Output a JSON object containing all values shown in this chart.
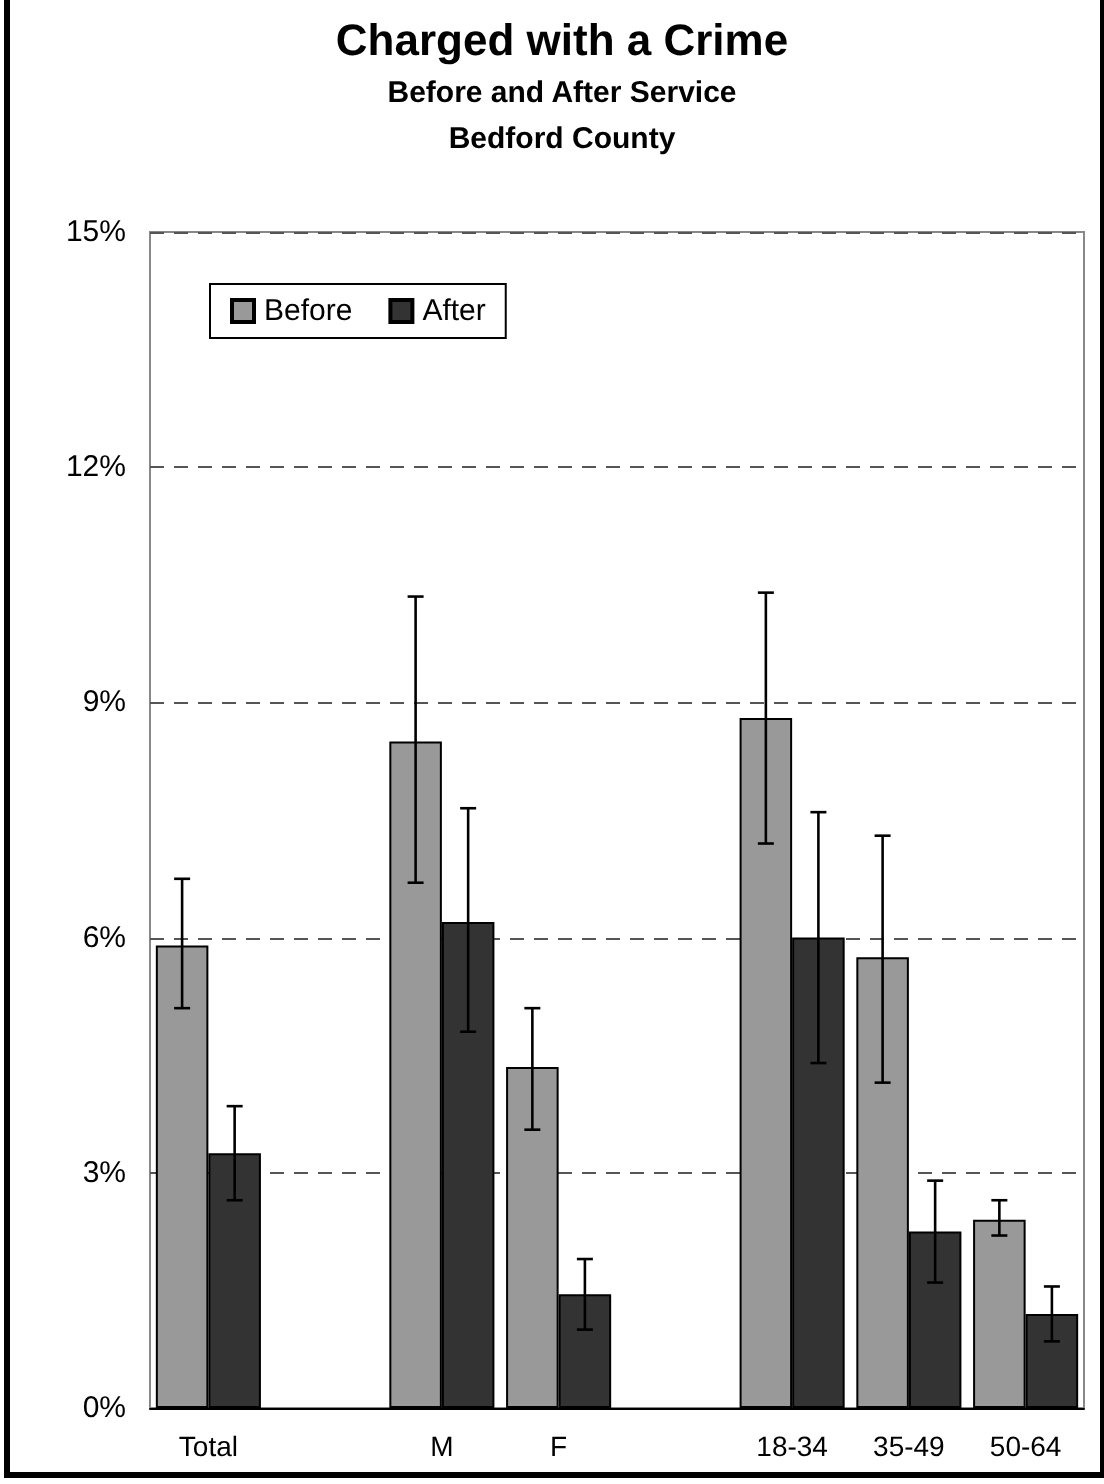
{
  "chart_data": {
    "type": "bar",
    "title": "Charged with a Crime",
    "subtitle": "Before and After Service\nBedford County",
    "categories": [
      "Total",
      null,
      "M",
      "F",
      null,
      "18-34",
      "35-49",
      "50-64"
    ],
    "series": [
      {
        "name": "Before",
        "color": "#999999",
        "values": [
          5.9,
          null,
          8.5,
          4.35,
          null,
          8.8,
          5.75,
          2.4
        ],
        "errors": [
          [
            5.1,
            6.75
          ],
          null,
          [
            6.7,
            10.35
          ],
          [
            3.55,
            5.1
          ],
          null,
          [
            7.2,
            10.4
          ],
          [
            4.15,
            7.3
          ],
          [
            2.2,
            2.65
          ]
        ]
      },
      {
        "name": "After",
        "color": "#333333",
        "values": [
          3.25,
          null,
          6.2,
          1.45,
          null,
          6.0,
          2.25,
          1.2
        ],
        "errors": [
          [
            2.65,
            3.85
          ],
          null,
          [
            4.8,
            7.65
          ],
          [
            1.0,
            1.9
          ],
          null,
          [
            4.4,
            7.6
          ],
          [
            1.6,
            2.9
          ],
          [
            0.85,
            1.55
          ]
        ]
      }
    ],
    "ylim": [
      0,
      15
    ],
    "yticks": [
      {
        "value": 0,
        "label": "0%"
      },
      {
        "value": 3,
        "label": "3%"
      },
      {
        "value": 6,
        "label": "6%"
      },
      {
        "value": 9,
        "label": "9%"
      },
      {
        "value": 12,
        "label": "12%"
      },
      {
        "value": 15,
        "label": "15%"
      }
    ],
    "grid": "y",
    "legend": "top left"
  }
}
